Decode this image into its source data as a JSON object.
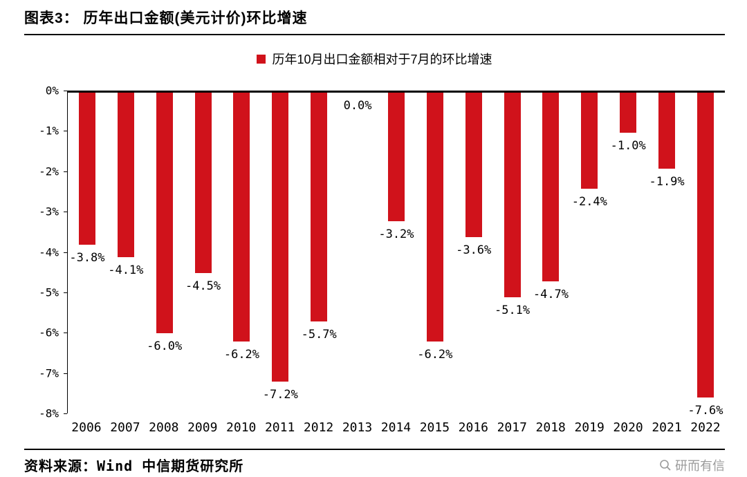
{
  "header": {
    "title": "图表3： 历年出口金额(美元计价)环比增速"
  },
  "legend": {
    "label": "历年10月出口金额相对于7月的环比增速"
  },
  "chart_data": {
    "type": "bar",
    "title": "历年10月出口金额相对于7月的环比增速",
    "categories": [
      "2006",
      "2007",
      "2008",
      "2009",
      "2010",
      "2011",
      "2012",
      "2013",
      "2014",
      "2015",
      "2016",
      "2017",
      "2018",
      "2019",
      "2020",
      "2021",
      "2022"
    ],
    "values": [
      -3.8,
      -4.1,
      -6.0,
      -4.5,
      -6.2,
      -7.2,
      -5.7,
      0.0,
      -3.2,
      -6.2,
      -3.6,
      -5.1,
      -4.7,
      -2.4,
      -1.0,
      -1.9,
      -7.6
    ],
    "labels": [
      "-3.8%",
      "-4.1%",
      "-6.0%",
      "-4.5%",
      "-6.2%",
      "-7.2%",
      "-5.7%",
      "0.0%",
      "-3.2%",
      "-6.2%",
      "-3.6%",
      "-5.1%",
      "-4.7%",
      "-2.4%",
      "-1.0%",
      "-1.9%",
      "-7.6%"
    ],
    "bar_color": "#d0121b",
    "xlabel": "",
    "ylabel": "",
    "ylim": [
      -8,
      0
    ],
    "ytick_labels": [
      "0%",
      "-1%",
      "-2%",
      "-3%",
      "-4%",
      "-5%",
      "-6%",
      "-7%",
      "-8%"
    ],
    "grid": false,
    "legend_position": "top"
  },
  "footer": {
    "source": "资料来源：Wind 中信期货研究所",
    "watermark": "研而有信"
  }
}
